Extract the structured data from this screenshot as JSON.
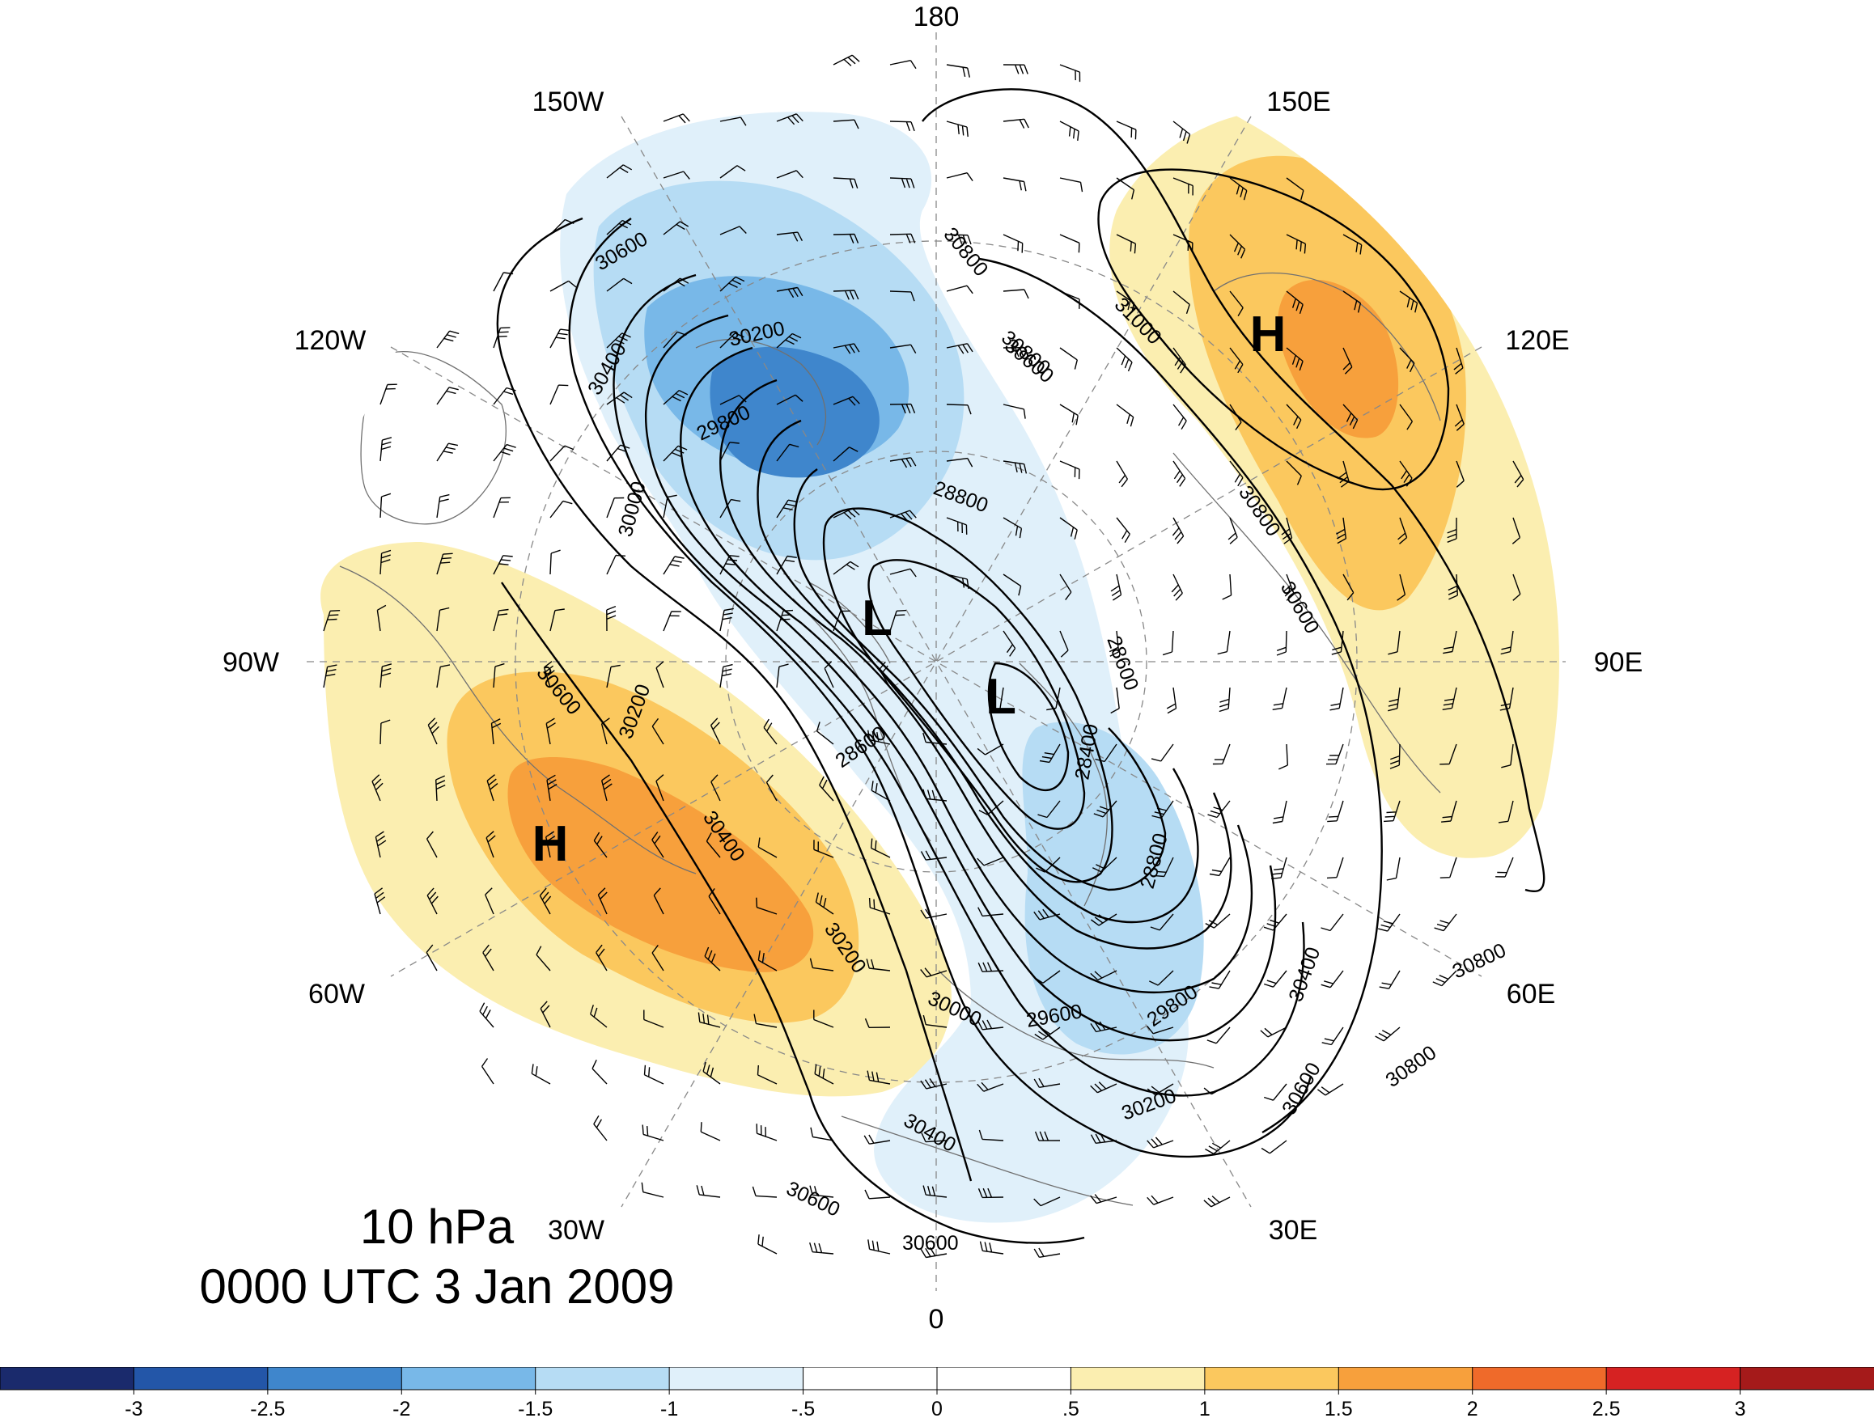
{
  "map": {
    "level": "10 hPa",
    "time": "0000 UTC 3 Jan 2009",
    "longitude_labels": [
      {
        "id": "180",
        "text": "180"
      },
      {
        "id": "150e",
        "text": "150E"
      },
      {
        "id": "120e",
        "text": "120E"
      },
      {
        "id": "90e",
        "text": "90E"
      },
      {
        "id": "60e",
        "text": "60E"
      },
      {
        "id": "30e",
        "text": "30E"
      },
      {
        "id": "0",
        "text": "0"
      },
      {
        "id": "30w",
        "text": "30W"
      },
      {
        "id": "60w",
        "text": "60W"
      },
      {
        "id": "90w",
        "text": "90W"
      },
      {
        "id": "120w",
        "text": "120W"
      },
      {
        "id": "150w",
        "text": "150W"
      }
    ],
    "pressure_centers": [
      {
        "id": "high-pacific",
        "text": "H"
      },
      {
        "id": "high-atlantic",
        "text": "H"
      },
      {
        "id": "low-1",
        "text": "L"
      },
      {
        "id": "low-2",
        "text": "L"
      }
    ],
    "contour_labels": [
      "30600",
      "30800",
      "30400",
      "30200",
      "29800",
      "30000",
      "28800",
      "30800",
      "30600",
      "31000",
      "30800",
      "30600",
      "28600",
      "28400",
      "28800",
      "28600",
      "30600",
      "30200",
      "30400",
      "30200",
      "30000",
      "30400",
      "30600",
      "30600",
      "29600",
      "29800",
      "30200",
      "30400",
      "30600",
      "30800",
      "30800"
    ]
  },
  "colorbar": {
    "colors": [
      "#1a2a6c",
      "#2356a8",
      "#3f86cc",
      "#78b8e8",
      "#b6dcf4",
      "#e0f0fa",
      "#ffffff",
      "#ffffff",
      "#fbeeb0",
      "#fbc85e",
      "#f7a03c",
      "#ef6a2a",
      "#d62222",
      "#a51a1a"
    ],
    "tick_labels": [
      "-3",
      "-2.5",
      "-2",
      "-1.5",
      "-1",
      "-.5",
      "0",
      ".5",
      "1",
      "1.5",
      "2",
      "2.5",
      "3"
    ]
  }
}
